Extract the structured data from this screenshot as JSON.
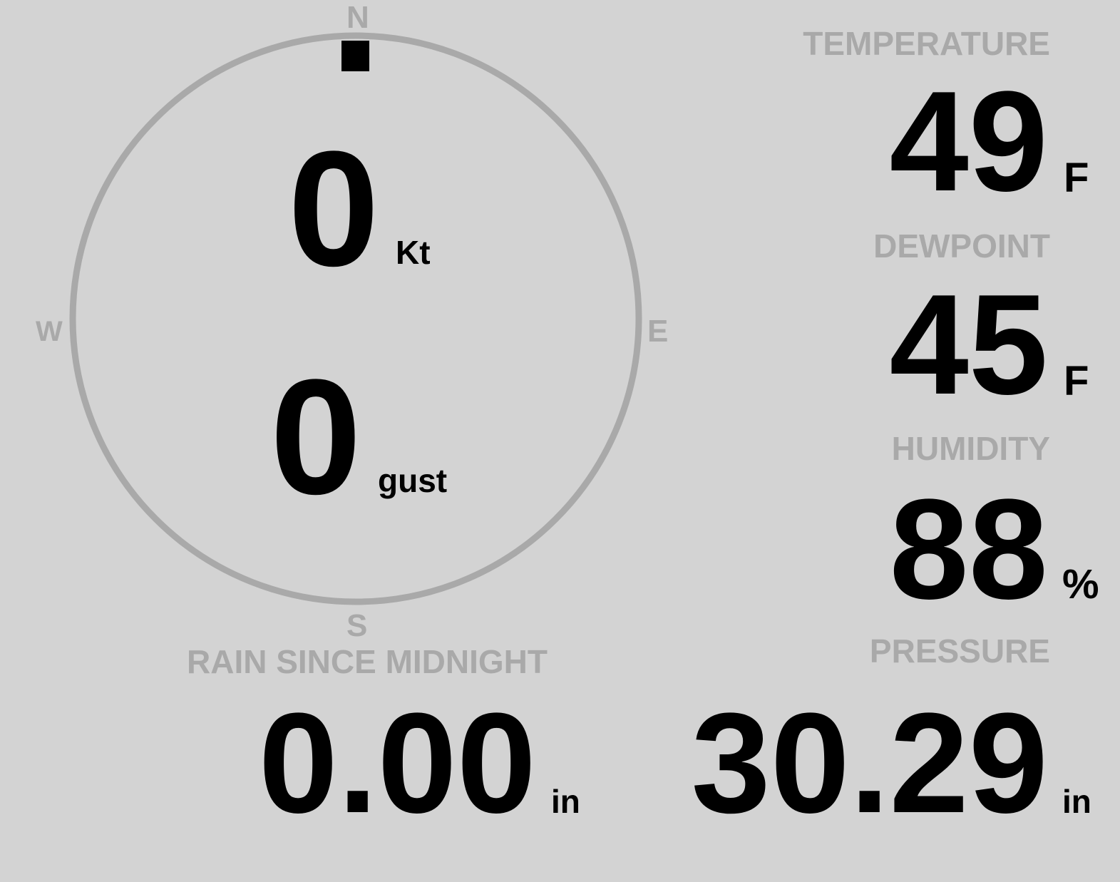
{
  "colors": {
    "background": "#d3d3d3",
    "label": "#a9a9a9",
    "value": "#000000",
    "compass_ring": "#a9a9a9",
    "wind_marker": "#000000"
  },
  "wind": {
    "compass": {
      "n": "N",
      "s": "S",
      "e": "E",
      "w": "W"
    },
    "direction_deg": 0,
    "speed": "0",
    "speed_unit": "Kt",
    "gust": "0",
    "gust_unit": "gust"
  },
  "temperature": {
    "label": "TEMPERATURE",
    "value": "49",
    "unit": "F"
  },
  "dewpoint": {
    "label": "DEWPOINT",
    "value": "45",
    "unit": "F"
  },
  "humidity": {
    "label": "HUMIDITY",
    "value": "88",
    "unit": "%"
  },
  "rain": {
    "label": "RAIN SINCE MIDNIGHT",
    "value": "0.00",
    "unit": "in"
  },
  "pressure": {
    "label": "PRESSURE",
    "value": "30.29",
    "unit": "in"
  }
}
